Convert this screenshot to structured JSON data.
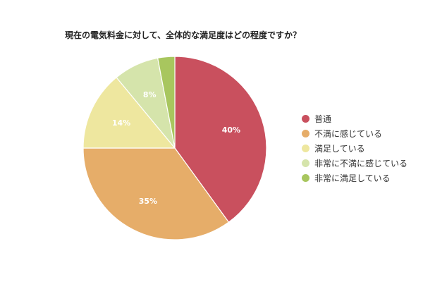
{
  "chart_data": {
    "type": "pie",
    "title": "現在の電気料金に対して、全体的な満足度はどの程度ですか？",
    "legend_position": "right",
    "slices": [
      {
        "label": "普通",
        "value": 40,
        "display": "40%",
        "color": "#c9505e"
      },
      {
        "label": "不満に感じている",
        "value": 35,
        "display": "35%",
        "color": "#e6ad69"
      },
      {
        "label": "満足している",
        "value": 14,
        "display": "14%",
        "color": "#eee79f"
      },
      {
        "label": "非常に不満に感じている",
        "value": 8,
        "display": "8%",
        "color": "#d5e4ab"
      },
      {
        "label": "非常に満足している",
        "value": 3,
        "display": "",
        "color": "#a8c65e"
      }
    ]
  }
}
